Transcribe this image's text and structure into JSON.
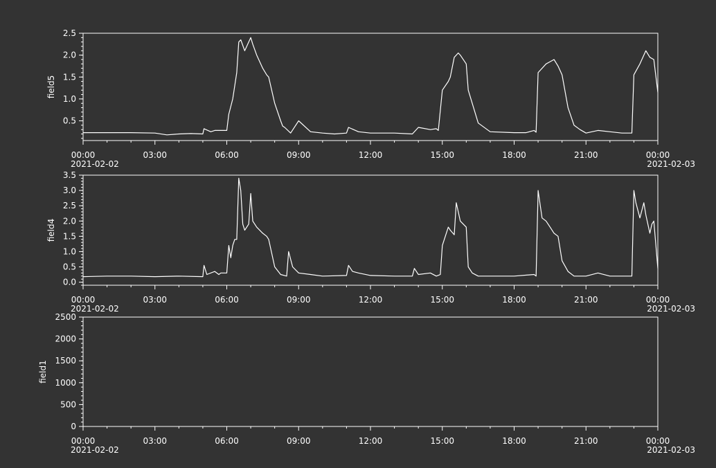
{
  "chart_data": [
    {
      "type": "line",
      "title": "",
      "xlabel": "",
      "ylabel": "field5",
      "xlim": [
        "2021-02-02 00:00",
        "2021-02-03 00:00"
      ],
      "x_ticks": [
        "00:00",
        "03:00",
        "06:00",
        "09:00",
        "12:00",
        "15:00",
        "18:00",
        "21:00",
        "00:00"
      ],
      "x_date_labels": [
        "2021-02-02",
        "2021-02-03"
      ],
      "ylim": [
        0.05,
        2.5
      ],
      "y_ticks": [
        "0.5",
        "1.0",
        "1.5",
        "2.0",
        "2.5"
      ],
      "grid": false,
      "line_color": "#ffffff",
      "series": [
        {
          "x": [
            "00:00",
            "01:00",
            "02:00",
            "03:00",
            "03:30",
            "04:00",
            "04:30",
            "05:00",
            "05:03",
            "05:20",
            "05:30",
            "06:00",
            "06:05",
            "06:15",
            "06:25",
            "06:30",
            "06:35",
            "06:45",
            "06:50",
            "07:00",
            "07:05",
            "07:15",
            "07:30",
            "07:40",
            "07:45",
            "08:00",
            "08:15",
            "08:20",
            "08:25",
            "08:40",
            "09:00",
            "09:30",
            "10:00",
            "10:30",
            "11:00",
            "11:05",
            "11:30",
            "12:00",
            "13:00",
            "13:45",
            "14:00",
            "14:30",
            "14:45",
            "14:50",
            "15:00",
            "15:15",
            "15:20",
            "15:30",
            "15:40",
            "15:45",
            "16:00",
            "16:05",
            "16:30",
            "17:00",
            "18:00",
            "18:30",
            "18:50",
            "18:55",
            "19:00",
            "19:20",
            "19:30",
            "19:40",
            "19:50",
            "20:00",
            "20:15",
            "20:30",
            "20:45",
            "21:00",
            "21:30",
            "22:00",
            "22:30",
            "22:55",
            "23:00",
            "23:15",
            "23:30",
            "23:40",
            "23:50",
            "24:00"
          ],
          "y": [
            0.23,
            0.23,
            0.23,
            0.22,
            0.18,
            0.2,
            0.21,
            0.2,
            0.32,
            0.25,
            0.28,
            0.28,
            0.65,
            1.0,
            1.6,
            2.3,
            2.35,
            2.1,
            2.2,
            2.4,
            2.25,
            2.0,
            1.7,
            1.55,
            1.5,
            0.9,
            0.5,
            0.38,
            0.35,
            0.22,
            0.5,
            0.25,
            0.22,
            0.2,
            0.22,
            0.35,
            0.25,
            0.22,
            0.22,
            0.2,
            0.35,
            0.3,
            0.32,
            0.28,
            1.2,
            1.4,
            1.5,
            1.95,
            2.05,
            2.0,
            1.8,
            1.2,
            0.45,
            0.25,
            0.23,
            0.23,
            0.28,
            0.24,
            1.6,
            1.8,
            1.85,
            1.9,
            1.75,
            1.55,
            0.8,
            0.4,
            0.3,
            0.22,
            0.28,
            0.25,
            0.22,
            0.22,
            1.55,
            1.8,
            2.1,
            1.95,
            1.9,
            1.15
          ]
        }
      ]
    },
    {
      "type": "line",
      "title": "",
      "xlabel": "",
      "ylabel": "field4",
      "xlim": [
        "2021-02-02 00:00",
        "2021-02-03 00:00"
      ],
      "x_ticks": [
        "00:00",
        "03:00",
        "06:00",
        "09:00",
        "12:00",
        "15:00",
        "18:00",
        "21:00",
        "00:00"
      ],
      "x_date_labels": [
        "2021-02-02",
        "2021-02-03"
      ],
      "ylim": [
        -0.1,
        3.5
      ],
      "y_ticks": [
        "0.0",
        "0.5",
        "1.0",
        "1.5",
        "2.0",
        "2.5",
        "3.0",
        "3.5"
      ],
      "grid": false,
      "line_color": "#ffffff",
      "series": [
        {
          "x": [
            "00:00",
            "01:00",
            "02:00",
            "03:00",
            "04:00",
            "05:00",
            "05:03",
            "05:10",
            "05:30",
            "05:40",
            "05:45",
            "06:00",
            "06:05",
            "06:10",
            "06:15",
            "06:20",
            "06:25",
            "06:30",
            "06:35",
            "06:40",
            "06:45",
            "06:55",
            "07:00",
            "07:05",
            "07:15",
            "07:30",
            "07:40",
            "07:45",
            "08:00",
            "08:15",
            "08:30",
            "08:35",
            "08:45",
            "09:00",
            "09:30",
            "10:00",
            "11:00",
            "11:05",
            "11:15",
            "11:30",
            "12:00",
            "13:00",
            "13:45",
            "13:50",
            "14:00",
            "14:30",
            "14:45",
            "14:55",
            "15:00",
            "15:15",
            "15:20",
            "15:30",
            "15:35",
            "15:45",
            "16:00",
            "16:05",
            "16:15",
            "16:30",
            "17:00",
            "18:00",
            "18:50",
            "18:55",
            "19:00",
            "19:10",
            "19:20",
            "19:30",
            "19:40",
            "19:50",
            "20:00",
            "20:15",
            "20:30",
            "21:00",
            "21:30",
            "22:00",
            "22:30",
            "22:55",
            "23:00",
            "23:05",
            "23:15",
            "23:25",
            "23:30",
            "23:35",
            "23:40",
            "23:45",
            "23:50",
            "24:00"
          ],
          "y": [
            0.18,
            0.2,
            0.2,
            0.18,
            0.2,
            0.18,
            0.55,
            0.25,
            0.35,
            0.25,
            0.3,
            0.3,
            1.2,
            0.8,
            1.2,
            1.4,
            1.4,
            3.4,
            3.0,
            1.9,
            1.7,
            1.9,
            2.9,
            2.0,
            1.8,
            1.6,
            1.5,
            1.4,
            0.5,
            0.25,
            0.2,
            1.0,
            0.5,
            0.3,
            0.25,
            0.2,
            0.22,
            0.55,
            0.35,
            0.3,
            0.22,
            0.2,
            0.2,
            0.45,
            0.25,
            0.3,
            0.2,
            0.25,
            1.2,
            1.8,
            1.7,
            1.55,
            2.6,
            2.0,
            1.8,
            0.5,
            0.3,
            0.2,
            0.2,
            0.2,
            0.25,
            0.2,
            3.0,
            2.1,
            2.0,
            1.8,
            1.6,
            1.5,
            0.7,
            0.35,
            0.2,
            0.2,
            0.3,
            0.2,
            0.2,
            0.2,
            3.0,
            2.6,
            2.1,
            2.6,
            2.2,
            1.9,
            1.6,
            1.9,
            2.0,
            0.45
          ]
        }
      ]
    },
    {
      "type": "line",
      "title": "",
      "xlabel": "",
      "ylabel": "field1",
      "xlim": [
        "2021-02-02 00:00",
        "2021-02-03 00:00"
      ],
      "x_ticks": [
        "00:00",
        "03:00",
        "06:00",
        "09:00",
        "12:00",
        "15:00",
        "18:00",
        "21:00",
        "00:00"
      ],
      "x_date_labels": [
        "2021-02-02",
        "2021-02-03"
      ],
      "ylim": [
        0,
        2500
      ],
      "y_ticks": [
        "0",
        "500",
        "1000",
        "1500",
        "2000",
        "2500"
      ],
      "grid": false,
      "line_color": "#ffffff",
      "series": []
    }
  ]
}
